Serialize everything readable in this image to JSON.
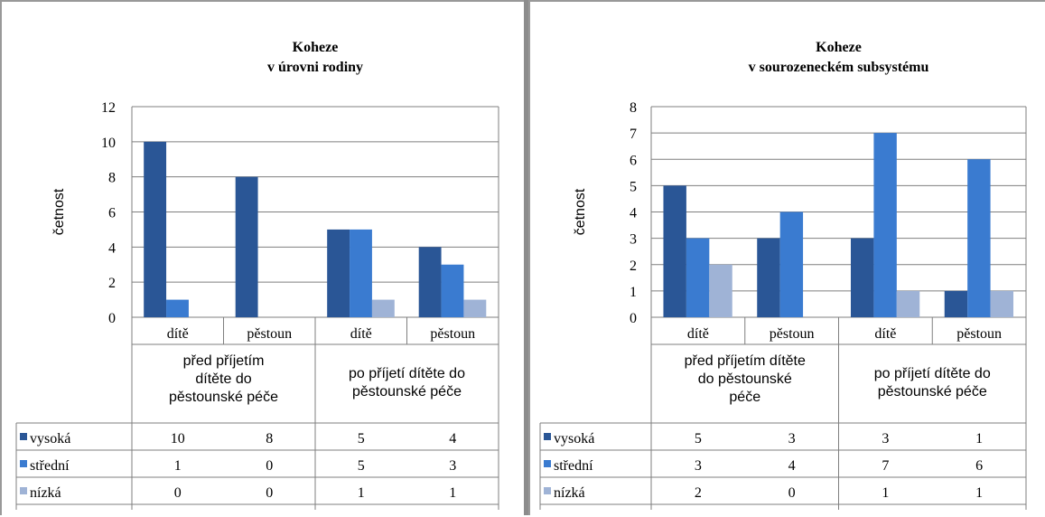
{
  "colors": {
    "vysoka": "#2a5696",
    "stredni": "#3a7bd0",
    "nizka": "#9fb3d6"
  },
  "chart_data": [
    {
      "type": "bar",
      "title_lines": [
        "Koheze",
        "v úrovni rodiny"
      ],
      "ylabel": "četnost",
      "ylim": [
        0,
        12
      ],
      "yticks": [
        0,
        2,
        4,
        6,
        8,
        10,
        12
      ],
      "categories": [
        "dítě",
        "pěstoun",
        "dítě",
        "pěstoun"
      ],
      "groups": [
        {
          "lines": [
            "před příjetím",
            "dítěte do",
            "pěstounské péče"
          ]
        },
        {
          "lines": [
            "po příjetí dítěte do",
            "pěstounské péče"
          ]
        }
      ],
      "series": [
        {
          "name": "vysoká",
          "values": [
            10,
            8,
            5,
            4
          ]
        },
        {
          "name": "střední",
          "values": [
            1,
            0,
            5,
            3
          ]
        },
        {
          "name": "nízká",
          "values": [
            0,
            0,
            1,
            1
          ]
        }
      ]
    },
    {
      "type": "bar",
      "title_lines": [
        "Koheze",
        "v sourozeneckém subsystému"
      ],
      "ylabel": "četnost",
      "ylim": [
        0,
        8
      ],
      "yticks": [
        0,
        1,
        2,
        3,
        4,
        5,
        6,
        7,
        8
      ],
      "categories": [
        "dítě",
        "pěstoun",
        "dítě",
        "pěstoun"
      ],
      "groups": [
        {
          "lines": [
            "před příjetím dítěte",
            "do pěstounské",
            "péče"
          ]
        },
        {
          "lines": [
            "po příjetí dítěte do",
            "pěstounské péče"
          ]
        }
      ],
      "series": [
        {
          "name": "vysoká",
          "values": [
            5,
            3,
            3,
            1
          ]
        },
        {
          "name": "střední",
          "values": [
            3,
            4,
            7,
            6
          ]
        },
        {
          "name": "nízká",
          "values": [
            2,
            0,
            1,
            1
          ]
        }
      ]
    }
  ]
}
